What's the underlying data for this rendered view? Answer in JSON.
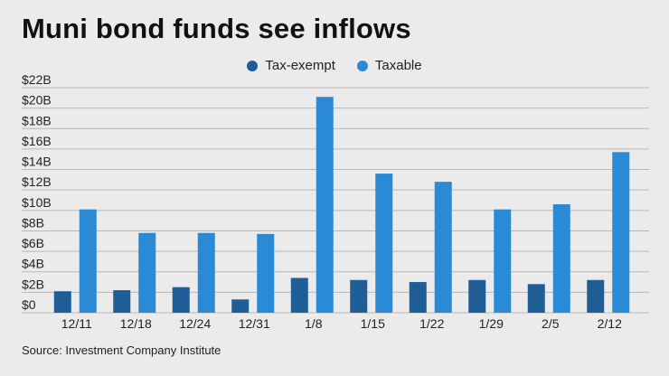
{
  "title": "Muni bond funds see inflows",
  "source": "Source: Investment Company Institute",
  "colors": {
    "tax_exempt": "#1f5d96",
    "taxable": "#2a8ad6",
    "grid": "#b8b8b8",
    "background": "#ebebeb"
  },
  "chart_data": {
    "type": "bar",
    "title": "Muni bond funds see inflows",
    "xlabel": "",
    "ylabel": "",
    "categories": [
      "12/11",
      "12/18",
      "12/24",
      "12/31",
      "1/8",
      "1/15",
      "1/22",
      "1/29",
      "2/5",
      "2/12"
    ],
    "series": [
      {
        "name": "Tax-exempt",
        "values": [
          2.1,
          2.2,
          2.5,
          1.3,
          3.4,
          3.2,
          3.0,
          3.2,
          2.8,
          3.2
        ]
      },
      {
        "name": "Taxable",
        "values": [
          10.1,
          7.8,
          7.8,
          7.7,
          21.1,
          13.6,
          12.8,
          10.1,
          10.6,
          15.7
        ]
      }
    ],
    "ylim": [
      0,
      22
    ],
    "yticks": [
      "$0",
      "$2B",
      "$4B",
      "$6B",
      "$8B",
      "$10B",
      "$12B",
      "$14B",
      "$16B",
      "$18B",
      "$20B",
      "$22B"
    ],
    "grid": true,
    "legend_position": "top-center"
  }
}
